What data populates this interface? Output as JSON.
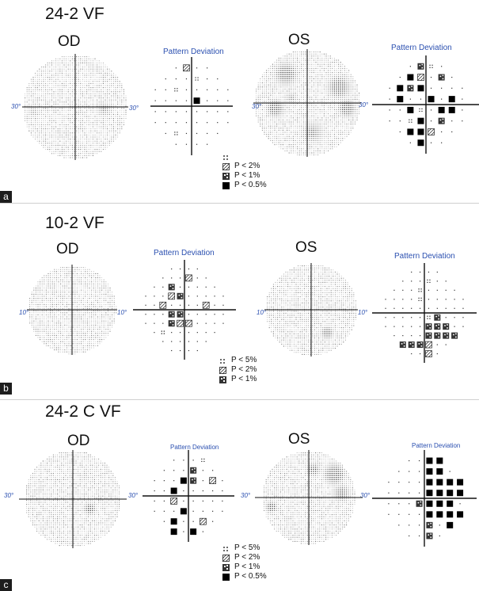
{
  "panels": [
    {
      "id": "a",
      "corner_label": "a",
      "title": "24-2 VF",
      "od_label": "OD",
      "os_label": "OS",
      "pd_title_od": "Pattern Deviation",
      "pd_title_os": "Pattern Deviation",
      "axis_tick": "30°",
      "legend": [
        {
          "symbol": "p5-dots",
          "text": ""
        },
        {
          "symbol": "p2-pattern",
          "text": "P < 2%"
        },
        {
          "symbol": "p1-pattern",
          "text": "P < 1%"
        },
        {
          "symbol": "p05-square",
          "text": "P < 0.5%"
        }
      ]
    },
    {
      "id": "b",
      "corner_label": "b",
      "title": "10-2 VF",
      "od_label": "OD",
      "os_label": "OS",
      "pd_title_od": "Pattern Deviation",
      "pd_title_os": "Pattern Deviation",
      "axis_tick": "10°",
      "legend": [
        {
          "symbol": "p5-dots",
          "text": "P < 5%"
        },
        {
          "symbol": "p2-pattern",
          "text": "P < 2%"
        },
        {
          "symbol": "p1-pattern",
          "text": "P < 1%"
        }
      ]
    },
    {
      "id": "c",
      "corner_label": "c",
      "title": "24-2 C VF",
      "od_label": "OD",
      "os_label": "OS",
      "pd_title_od": "Pattern Deviation",
      "pd_title_os": "Pattern Deviation",
      "axis_tick": "30°",
      "legend": [
        {
          "symbol": "p5-dots",
          "text": "P < 5%"
        },
        {
          "symbol": "p2-pattern",
          "text": "P < 2%"
        },
        {
          "symbol": "p1-pattern",
          "text": "P < 1%"
        },
        {
          "symbol": "p05-square",
          "text": "P < 0.5%"
        }
      ]
    }
  ],
  "colors": {
    "label_blue": "#2a4fb0",
    "ink": "#111111"
  }
}
